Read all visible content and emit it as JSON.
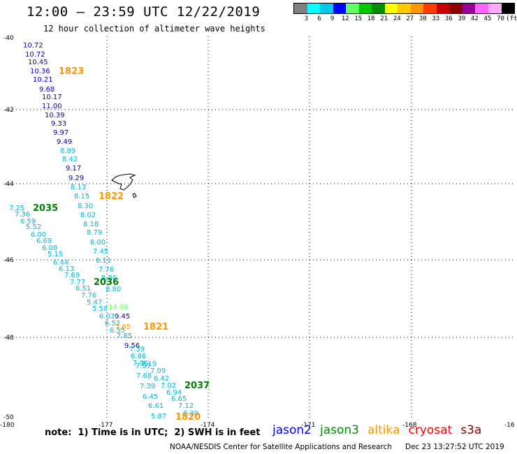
{
  "title": "12:00 – 23:59 UTC 12/22/2019",
  "subtitle": "12 hour collection of altimeter wave heights",
  "scale": {
    "colors": [
      "#808080",
      "#00ffff",
      "#00c8e8",
      "#0000ff",
      "#64ff64",
      "#00c800",
      "#008c00",
      "#ffff00",
      "#ffc800",
      "#ff9600",
      "#ff3c00",
      "#c80000",
      "#8c0000",
      "#960096",
      "#ff64ff",
      "#ffaaff",
      "#000000"
    ],
    "labels": [
      "3",
      "6",
      "9",
      "12",
      "15",
      "18",
      "21",
      "24",
      "27",
      "30",
      "33",
      "36",
      "39",
      "42",
      "45",
      "70",
      "(ft)"
    ]
  },
  "axes": {
    "lat_labels": [
      "-40",
      "-42",
      "-44",
      "-46",
      "-48",
      "-50"
    ],
    "lon_labels": [
      "-180",
      "-177",
      "-174",
      "-171",
      "-168",
      "-16"
    ]
  },
  "track_colors": {
    "dark": "#0000c8",
    "cyan": "#00b4dc",
    "green": "#008000",
    "orange": "#ff9600",
    "lightgreen": "#64ff64"
  },
  "wave_values": [
    {
      "t": "10.72",
      "c": "dark"
    },
    {
      "t": "10.72",
      "c": "dark"
    },
    {
      "t": "10.45",
      "c": "dark"
    },
    {
      "t": "10.36",
      "c": "dark"
    },
    {
      "t": "10.21",
      "c": "dark"
    },
    {
      "t": "9.68",
      "c": "dark"
    },
    {
      "t": "10.17",
      "c": "dark"
    },
    {
      "t": "11.00",
      "c": "dark"
    },
    {
      "t": "10.39",
      "c": "dark"
    },
    {
      "t": "9.33",
      "c": "dark"
    },
    {
      "t": "9.97",
      "c": "dark"
    },
    {
      "t": "9.49",
      "c": "dark"
    },
    {
      "t": "8.89",
      "c": "cyan"
    },
    {
      "t": "8.42",
      "c": "cyan"
    },
    {
      "t": "9.17",
      "c": "dark"
    },
    {
      "t": "9.29",
      "c": "dark"
    },
    {
      "t": "8.13",
      "c": "cyan"
    },
    {
      "t": "8.15",
      "c": "cyan"
    },
    {
      "t": "8.30",
      "c": "cyan"
    },
    {
      "t": "8.02",
      "c": "cyan"
    },
    {
      "t": "8.18",
      "c": "cyan"
    },
    {
      "t": "8.79",
      "c": "cyan"
    },
    {
      "t": "8.00",
      "c": "cyan"
    },
    {
      "t": "7.45",
      "c": "cyan"
    },
    {
      "t": "8.11",
      "c": "cyan"
    },
    {
      "t": "7.76",
      "c": "cyan"
    },
    {
      "t": "8.86",
      "c": "cyan"
    },
    {
      "t": "8.80",
      "c": "cyan"
    },
    {
      "t": "7.25",
      "c": "cyan"
    },
    {
      "t": "7.36",
      "c": "cyan"
    },
    {
      "t": "6.59",
      "c": "cyan"
    },
    {
      "t": "5.52",
      "c": "cyan"
    },
    {
      "t": "6.00",
      "c": "cyan"
    },
    {
      "t": "6.69",
      "c": "cyan"
    },
    {
      "t": "6.08",
      "c": "cyan"
    },
    {
      "t": "5.15",
      "c": "cyan"
    },
    {
      "t": "6.44",
      "c": "cyan"
    },
    {
      "t": "6.13",
      "c": "cyan"
    },
    {
      "t": "7.69",
      "c": "cyan"
    },
    {
      "t": "7.77",
      "c": "cyan"
    },
    {
      "t": "6.51",
      "c": "cyan"
    },
    {
      "t": "7.76",
      "c": "cyan"
    },
    {
      "t": "5.47",
      "c": "cyan"
    },
    {
      "t": "5.58",
      "c": "cyan"
    },
    {
      "t": "14.98",
      "c": "lightgreen"
    },
    {
      "t": "6.03",
      "c": "cyan"
    },
    {
      "t": "9.45",
      "c": "dark"
    },
    {
      "t": "6.52",
      "c": "cyan"
    },
    {
      "t": "7.65",
      "c": "orange"
    },
    {
      "t": "6.55",
      "c": "cyan"
    },
    {
      "t": "7.85",
      "c": "cyan"
    },
    {
      "t": "9.56",
      "c": "dark"
    },
    {
      "t": "7.39",
      "c": "cyan"
    },
    {
      "t": "6.86",
      "c": "cyan"
    },
    {
      "t": "7.96",
      "c": "cyan"
    },
    {
      "t": "7.19",
      "c": "cyan"
    },
    {
      "t": "7.97",
      "c": "cyan"
    },
    {
      "t": "7.09",
      "c": "cyan"
    },
    {
      "t": "7.68",
      "c": "cyan"
    },
    {
      "t": "6.42",
      "c": "cyan"
    },
    {
      "t": "7.39",
      "c": "cyan"
    },
    {
      "t": "7.02",
      "c": "cyan"
    },
    {
      "t": "6.94",
      "c": "cyan"
    },
    {
      "t": "6.45",
      "c": "cyan"
    },
    {
      "t": "6.65",
      "c": "cyan"
    },
    {
      "t": "6.61",
      "c": "cyan"
    },
    {
      "t": "7.12",
      "c": "cyan"
    },
    {
      "t": "5.87",
      "c": "cyan"
    },
    {
      "t": "6.30",
      "c": "cyan"
    }
  ],
  "time_labels": [
    {
      "t": "1823",
      "c": "orange"
    },
    {
      "t": "1822",
      "c": "orange"
    },
    {
      "t": "2035",
      "c": "green"
    },
    {
      "t": "2036",
      "c": "green"
    },
    {
      "t": "1821",
      "c": "orange"
    },
    {
      "t": "2037",
      "c": "green"
    },
    {
      "t": "1820",
      "c": "orange"
    }
  ],
  "note": "note:  1) Time is in UTC;  2) SWH is in feet",
  "legend": [
    {
      "label": "jason2",
      "color": "#0000ff"
    },
    {
      "label": "jason3",
      "color": "#008c00"
    },
    {
      "label": "altika",
      "color": "#ff9600"
    },
    {
      "label": "cryosat",
      "color": "#ff0000"
    },
    {
      "label": "s3a",
      "color": "#8c0000"
    }
  ],
  "footer_left": "NOAA/NESDIS Center for Satellite Applications and Research",
  "footer_right": "Dec 23 13:27:52 UTC 2019"
}
